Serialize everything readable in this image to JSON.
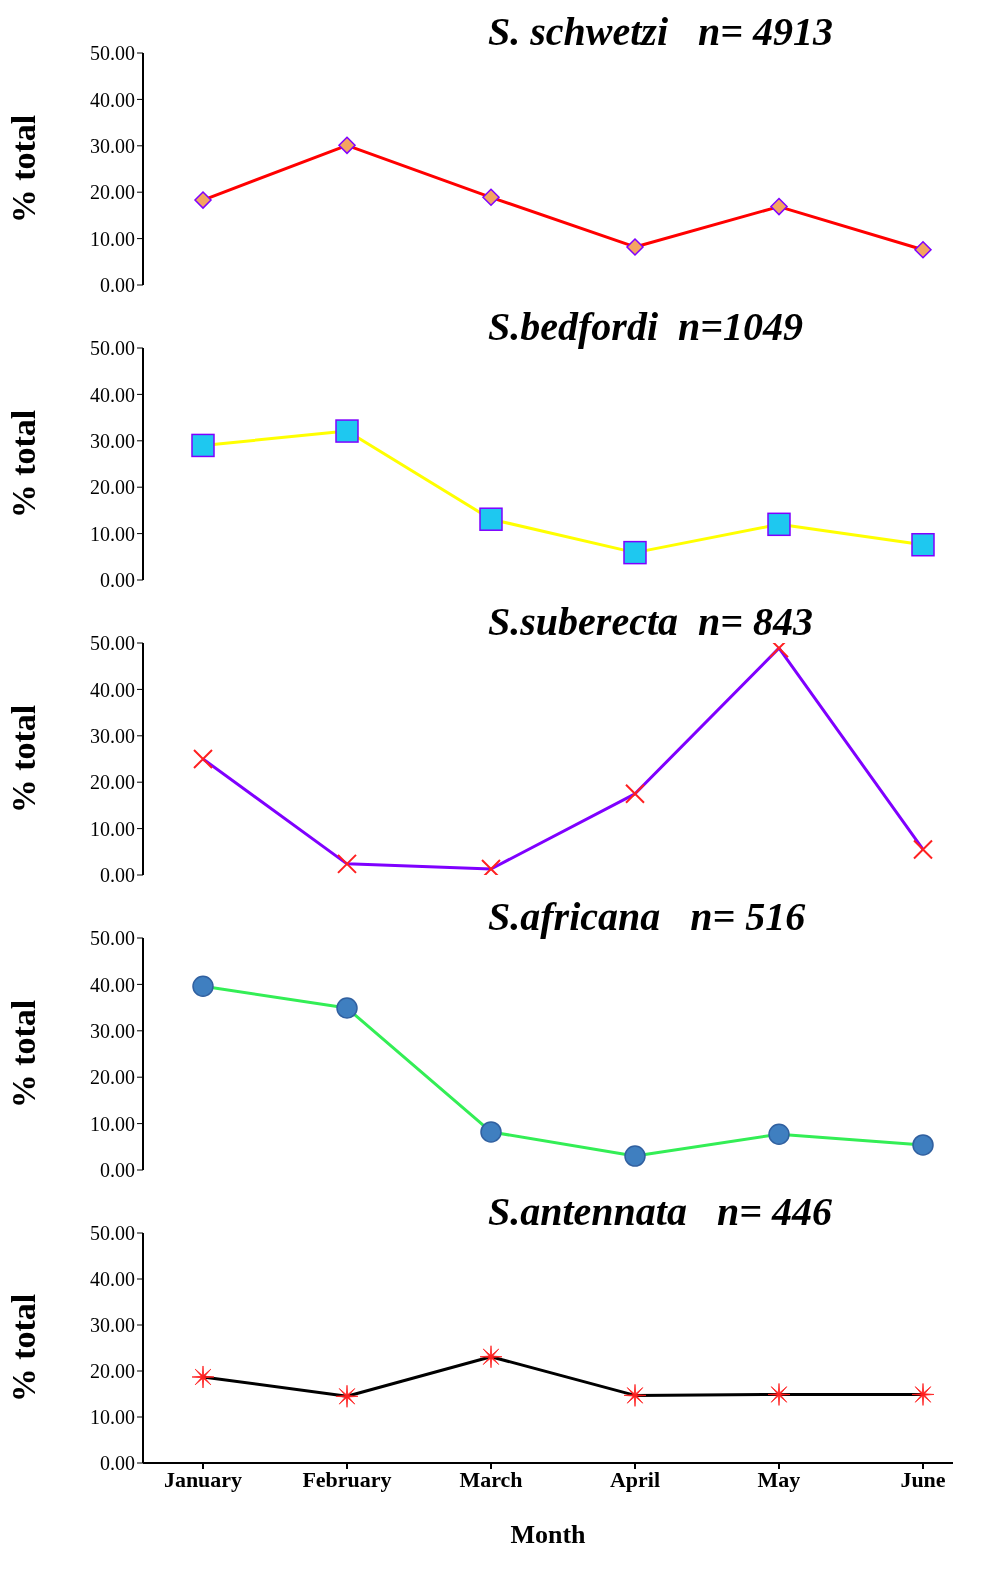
{
  "chart_data": [
    {
      "type": "line",
      "title": "S. schwetzi   n= 4913",
      "ylabel": "% total",
      "categories": [
        null,
        null,
        null,
        null,
        null,
        null
      ],
      "series": [
        {
          "color": "#ff0000",
          "values": [
            18.3,
            30.1,
            18.9,
            8.2,
            16.9,
            7.6
          ]
        }
      ],
      "ylim": [
        0,
        50
      ],
      "yticks": [
        {
          "value": 0,
          "label": "0.00"
        },
        {
          "value": 10,
          "label": "10.00"
        },
        {
          "value": 20,
          "label": "20.00"
        },
        {
          "value": 30,
          "label": "30.00"
        },
        {
          "value": 40,
          "label": "40.00"
        },
        {
          "value": 50,
          "label": "50.00"
        }
      ],
      "marker": "diamond",
      "tick_labels": "y",
      "legend": false,
      "grid": false
    },
    {
      "type": "line",
      "title": "S.bedfordi  n=1049",
      "ylabel": "% total",
      "categories": [
        null,
        null,
        null,
        null,
        null,
        null
      ],
      "series": [
        {
          "color": "#ffff00",
          "values": [
            29.0,
            32.1,
            13.1,
            5.9,
            12.0,
            7.6
          ]
        }
      ],
      "ylim": [
        0,
        50
      ],
      "yticks": [
        {
          "value": 0,
          "label": "0.00"
        },
        {
          "value": 10,
          "label": "10.00"
        },
        {
          "value": 20,
          "label": "20.00"
        },
        {
          "value": 30,
          "label": "30.00"
        },
        {
          "value": 40,
          "label": "40.00"
        },
        {
          "value": 50,
          "label": "50.00"
        }
      ],
      "marker": "square",
      "tick_labels": "y",
      "legend": false,
      "grid": false
    },
    {
      "type": "line",
      "title": "S.suberecta  n= 843",
      "ylabel": "% total",
      "categories": [
        null,
        null,
        null,
        null,
        null,
        null
      ],
      "series": [
        {
          "color": "#7f00ff",
          "values": [
            25.0,
            2.4,
            1.3,
            17.5,
            48.9,
            5.5
          ]
        }
      ],
      "ylim": [
        0,
        50
      ],
      "yticks": [
        {
          "value": 0,
          "label": "0.00"
        },
        {
          "value": 10,
          "label": "10.00"
        },
        {
          "value": 20,
          "label": "20.00"
        },
        {
          "value": 30,
          "label": "30.00"
        },
        {
          "value": 40,
          "label": "40.00"
        },
        {
          "value": 50,
          "label": "50.00"
        }
      ],
      "marker": "cross",
      "tick_labels": "y",
      "legend": false,
      "grid": false
    },
    {
      "type": "line",
      "title": "S.africana   n= 516",
      "ylabel": "% total",
      "categories": [
        null,
        null,
        null,
        null,
        null,
        null
      ],
      "series": [
        {
          "color": "#33ee55",
          "values": [
            39.6,
            34.9,
            8.2,
            3.0,
            7.7,
            5.4
          ]
        }
      ],
      "ylim": [
        0,
        50
      ],
      "yticks": [
        {
          "value": 0,
          "label": "0.00"
        },
        {
          "value": 10,
          "label": "10.00"
        },
        {
          "value": 20,
          "label": "20.00"
        },
        {
          "value": 30,
          "label": "30.00"
        },
        {
          "value": 40,
          "label": "40.00"
        },
        {
          "value": 50,
          "label": "50.00"
        }
      ],
      "marker": "circle",
      "tick_labels": "y",
      "legend": false,
      "grid": false
    },
    {
      "type": "line",
      "title": "S.antennata   n= 446",
      "ylabel": "% total",
      "xlabel": "Month",
      "categories": [
        "January",
        "February",
        "March",
        "April",
        "May",
        "June"
      ],
      "series": [
        {
          "color": "#000000",
          "values": [
            18.7,
            14.5,
            23.1,
            14.7,
            14.9,
            14.9
          ]
        }
      ],
      "ylim": [
        0,
        50
      ],
      "yticks": [
        {
          "value": 0,
          "label": "0.00"
        },
        {
          "value": 10,
          "label": "10.00"
        },
        {
          "value": 20,
          "label": "20.00"
        },
        {
          "value": 30,
          "label": "30.00"
        },
        {
          "value": 40,
          "label": "40.00"
        },
        {
          "value": 50,
          "label": "50.00"
        }
      ],
      "marker": "star",
      "legend": false,
      "grid": false
    }
  ]
}
